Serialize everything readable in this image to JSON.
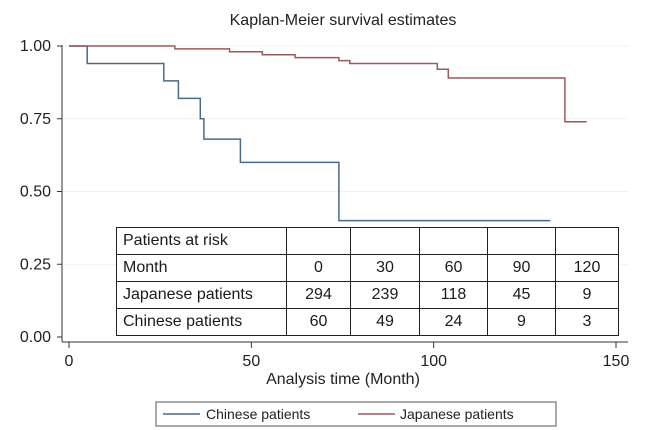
{
  "chart_data": {
    "type": "line",
    "title": "Kaplan-Meier survival estimates",
    "xlabel": "Analysis time (Month)",
    "ylabel": "",
    "xlim": [
      0,
      150
    ],
    "ylim": [
      0,
      1
    ],
    "xticks": [
      "0",
      "50",
      "100",
      "150"
    ],
    "yticks": [
      "0.00",
      "0.25",
      "0.50",
      "0.75",
      "1.00"
    ],
    "grid": true,
    "legend_position": "bottom",
    "step": true,
    "series": [
      {
        "name": "Chinese patients",
        "color": "#4a6b86",
        "points": [
          [
            0,
            1.0
          ],
          [
            5,
            1.0
          ],
          [
            5,
            0.94
          ],
          [
            26,
            0.94
          ],
          [
            26,
            0.88
          ],
          [
            30,
            0.88
          ],
          [
            30,
            0.82
          ],
          [
            36,
            0.82
          ],
          [
            36,
            0.75
          ],
          [
            37,
            0.75
          ],
          [
            37,
            0.68
          ],
          [
            47,
            0.68
          ],
          [
            47,
            0.6
          ],
          [
            74,
            0.6
          ],
          [
            74,
            0.4
          ],
          [
            132,
            0.4
          ]
        ]
      },
      {
        "name": "Japanese patients",
        "color": "#9c5a5e",
        "points": [
          [
            0,
            1.0
          ],
          [
            29,
            1.0
          ],
          [
            29,
            0.99
          ],
          [
            44,
            0.99
          ],
          [
            44,
            0.98
          ],
          [
            53,
            0.98
          ],
          [
            53,
            0.97
          ],
          [
            62,
            0.97
          ],
          [
            62,
            0.96
          ],
          [
            74,
            0.96
          ],
          [
            74,
            0.95
          ],
          [
            77,
            0.95
          ],
          [
            77,
            0.94
          ],
          [
            101,
            0.94
          ],
          [
            101,
            0.92
          ],
          [
            104,
            0.92
          ],
          [
            104,
            0.89
          ],
          [
            136,
            0.89
          ],
          [
            136,
            0.74
          ],
          [
            142,
            0.74
          ]
        ]
      }
    ]
  },
  "risk_table": {
    "title": "Patients at risk",
    "header": {
      "label": "Month",
      "values": [
        "0",
        "30",
        "60",
        "90",
        "120"
      ]
    },
    "rows": [
      {
        "label": "Japanese patients",
        "values": [
          "294",
          "239",
          "118",
          "45",
          "9"
        ]
      },
      {
        "label": "Chinese patients",
        "values": [
          "60",
          "49",
          "24",
          "9",
          "3"
        ]
      }
    ]
  }
}
